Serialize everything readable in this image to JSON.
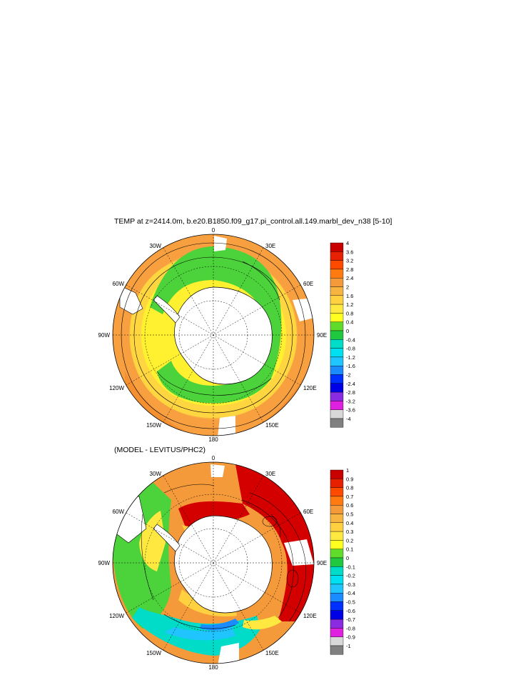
{
  "title_top": "TEMP at z=2414.0m, b.e20.B1850.f09_g17.pi_control.all.149.marbl_dev_n38 [5-10]",
  "title_bottom": "(MODEL - LEVITUS/PHC2)",
  "lon_labels": {
    "n0": "0",
    "n30e": "30E",
    "n60e": "60E",
    "n90e": "90E",
    "n120e": "120E",
    "n150e": "150E",
    "n180": "180",
    "n150w": "150W",
    "n120w": "120W",
    "n90w": "90W",
    "n60w": "60W",
    "n30w": "30W"
  },
  "colorbar_top": {
    "labels": [
      "4",
      "3.6",
      "3.2",
      "2.8",
      "2.4",
      "2",
      "1.6",
      "1.2",
      "0.8",
      "0.4",
      "0",
      "-0.4",
      "-0.8",
      "-1.2",
      "-1.6",
      "-2",
      "-2.4",
      "-2.8",
      "-3.2",
      "-3.6",
      "-4"
    ],
    "colors": [
      "#c80000",
      "#e62000",
      "#ff4a00",
      "#ff7a10",
      "#f59a3a",
      "#f8b440",
      "#ffd040",
      "#ffe840",
      "#ffff20",
      "#5fdc2a",
      "#20c840",
      "#00dcc8",
      "#00e0f0",
      "#20c4ff",
      "#1a8cff",
      "#0030ff",
      "#0000e6",
      "#8a2be2",
      "#e020e0",
      "#d8d8d8",
      "#808080"
    ]
  },
  "colorbar_bottom": {
    "labels": [
      "1",
      "0.9",
      "0.8",
      "0.7",
      "0.6",
      "0.5",
      "0.4",
      "0.3",
      "0.2",
      "0.1",
      "0",
      "-0.1",
      "-0.2",
      "-0.3",
      "-0.4",
      "-0.5",
      "-0.6",
      "-0.7",
      "-0.8",
      "-0.9",
      "-1"
    ],
    "colors": [
      "#c80000",
      "#e62000",
      "#ff4a00",
      "#ff7a10",
      "#f59a3a",
      "#f8b440",
      "#ffd040",
      "#ffe840",
      "#ffff20",
      "#5fdc2a",
      "#20c840",
      "#00dcc8",
      "#00e0f0",
      "#20c4ff",
      "#1a8cff",
      "#0030ff",
      "#0000e6",
      "#8a2be2",
      "#e020e0",
      "#d8d8d8",
      "#808080"
    ]
  }
}
